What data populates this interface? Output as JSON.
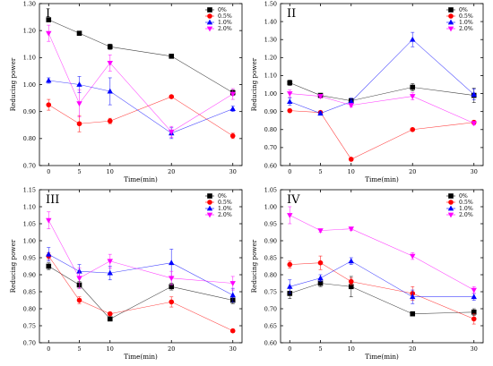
{
  "chart_data": [
    {
      "type": "line",
      "panel_label": "I",
      "xlabel": "Time(min)",
      "ylabel": "Reducing power",
      "x": [
        0,
        5,
        10,
        20,
        30
      ],
      "xticks": [
        "0",
        "5",
        "10",
        "20",
        "30"
      ],
      "ylim": [
        0.7,
        1.3
      ],
      "yticks": [
        "0.70",
        "0.80",
        "0.90",
        "1.00",
        "1.10",
        "1.20",
        "1.30"
      ],
      "legend_position": "top-right",
      "series": [
        {
          "name": "0%",
          "color": "#000000",
          "marker": "square",
          "values": [
            1.24,
            1.19,
            1.14,
            1.105,
            0.97
          ],
          "errors": [
            0.005,
            0.005,
            0.01,
            0.005,
            0.01
          ]
        },
        {
          "name": "0.5%",
          "color": "#ff0000",
          "marker": "circle",
          "values": [
            0.925,
            0.855,
            0.865,
            0.955,
            0.81
          ],
          "errors": [
            0.02,
            0.03,
            0.01,
            0.005,
            0.01
          ]
        },
        {
          "name": "1.0%",
          "color": "#0000ff",
          "marker": "triangle-up",
          "values": [
            1.015,
            1.0,
            0.975,
            0.82,
            0.91
          ],
          "errors": [
            0.01,
            0.03,
            0.05,
            0.02,
            0.01
          ]
        },
        {
          "name": "2.0%",
          "color": "#ff00ff",
          "marker": "triangle-down",
          "values": [
            1.19,
            0.93,
            1.08,
            0.825,
            0.965
          ],
          "errors": [
            0.03,
            0.05,
            0.03,
            0.02,
            0.02
          ]
        }
      ]
    },
    {
      "type": "line",
      "panel_label": "II",
      "xlabel": "Time(min)",
      "ylabel": "Reducing power",
      "x": [
        0,
        5,
        10,
        20,
        30
      ],
      "xticks": [
        "0",
        "5",
        "10",
        "20",
        "30"
      ],
      "ylim": [
        0.6,
        1.5
      ],
      "yticks": [
        "0.60",
        "0.70",
        "0.80",
        "0.90",
        "1.00",
        "1.10",
        "1.20",
        "1.30",
        "1.40",
        "1.50"
      ],
      "legend_position": "top-right",
      "series": [
        {
          "name": "0%",
          "color": "#000000",
          "marker": "square",
          "values": [
            1.06,
            0.99,
            0.96,
            1.035,
            0.99
          ],
          "errors": [
            0.015,
            0.01,
            0.01,
            0.02,
            0.04
          ]
        },
        {
          "name": "0.5%",
          "color": "#ff0000",
          "marker": "circle",
          "values": [
            0.905,
            0.895,
            0.635,
            0.8,
            0.84
          ],
          "errors": [
            0.005,
            0.005,
            0.005,
            0.005,
            0.01
          ]
        },
        {
          "name": "1.0%",
          "color": "#0000ff",
          "marker": "triangle-up",
          "values": [
            0.955,
            0.89,
            0.955,
            1.3,
            0.995
          ],
          "errors": [
            0.02,
            0.01,
            0.02,
            0.04,
            0.03
          ]
        },
        {
          "name": "2.0%",
          "color": "#ff00ff",
          "marker": "triangle-down",
          "values": [
            1.0,
            0.985,
            0.935,
            0.985,
            0.835
          ],
          "errors": [
            0.02,
            0.01,
            0.01,
            0.02,
            0.01
          ]
        }
      ]
    },
    {
      "type": "line",
      "panel_label": "III",
      "xlabel": "Time(min)",
      "ylabel": "Reducing power",
      "x": [
        0,
        5,
        10,
        20,
        30
      ],
      "xticks": [
        "0",
        "5",
        "10",
        "20",
        "30"
      ],
      "ylim": [
        0.7,
        1.15
      ],
      "yticks": [
        "0.70",
        "0.75",
        "0.80",
        "0.85",
        "0.90",
        "0.95",
        "1.00",
        "1.05",
        "1.10",
        "1.15"
      ],
      "legend_position": "top-right",
      "series": [
        {
          "name": "0%",
          "color": "#000000",
          "marker": "square",
          "values": [
            0.925,
            0.87,
            0.77,
            0.865,
            0.825
          ],
          "errors": [
            0.01,
            0.01,
            0.005,
            0.01,
            0.01
          ]
        },
        {
          "name": "0.5%",
          "color": "#ff0000",
          "marker": "circle",
          "values": [
            0.955,
            0.825,
            0.785,
            0.82,
            0.735
          ],
          "errors": [
            0.01,
            0.01,
            0.005,
            0.015,
            0.005
          ]
        },
        {
          "name": "1.0%",
          "color": "#0000ff",
          "marker": "triangle-up",
          "values": [
            0.96,
            0.91,
            0.905,
            0.935,
            0.84
          ],
          "errors": [
            0.02,
            0.02,
            0.02,
            0.04,
            0.02
          ]
        },
        {
          "name": "2.0%",
          "color": "#ff00ff",
          "marker": "triangle-down",
          "values": [
            1.06,
            0.89,
            0.94,
            0.89,
            0.875
          ],
          "errors": [
            0.025,
            0.03,
            0.02,
            0.02,
            0.02
          ]
        }
      ]
    },
    {
      "type": "line",
      "panel_label": "IV",
      "xlabel": "Time(min)",
      "ylabel": "Reducing power",
      "x": [
        0,
        5,
        10,
        20,
        30
      ],
      "xticks": [
        "0",
        "5",
        "10",
        "20",
        "30"
      ],
      "ylim": [
        0.6,
        1.05
      ],
      "yticks": [
        "0.60",
        "0.65",
        "0.70",
        "0.75",
        "0.80",
        "0.85",
        "0.90",
        "0.95",
        "1.00",
        "1.05"
      ],
      "legend_position": "top-right",
      "series": [
        {
          "name": "0%",
          "color": "#000000",
          "marker": "square",
          "values": [
            0.745,
            0.775,
            0.765,
            0.685,
            0.69
          ],
          "errors": [
            0.015,
            0.01,
            0.03,
            0.005,
            0.01
          ]
        },
        {
          "name": "0.5%",
          "color": "#ff0000",
          "marker": "circle",
          "values": [
            0.83,
            0.835,
            0.78,
            0.745,
            0.67
          ],
          "errors": [
            0.01,
            0.02,
            0.01,
            0.02,
            0.015
          ]
        },
        {
          "name": "1.0%",
          "color": "#0000ff",
          "marker": "triangle-up",
          "values": [
            0.765,
            0.79,
            0.84,
            0.735,
            0.735
          ],
          "errors": [
            0.02,
            0.01,
            0.01,
            0.02,
            0.01
          ]
        },
        {
          "name": "2.0%",
          "color": "#ff00ff",
          "marker": "triangle-down",
          "values": [
            0.975,
            0.93,
            0.935,
            0.855,
            0.755
          ],
          "errors": [
            0.025,
            0.005,
            0.005,
            0.01,
            0.01
          ]
        }
      ]
    }
  ],
  "legend_labels": [
    "0%",
    "0.5%",
    "1.0%",
    "2.0%"
  ]
}
